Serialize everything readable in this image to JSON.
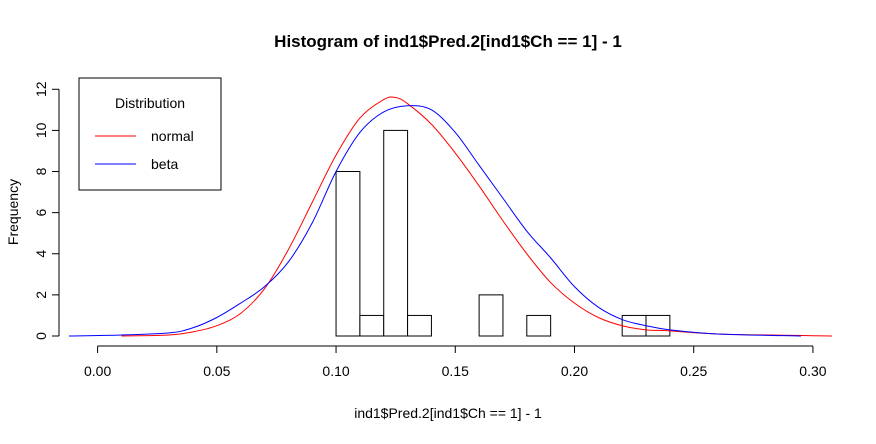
{
  "chart_data": {
    "type": "histogram",
    "title": "Histogram of ind1$Pred.2[ind1$Ch == 1] - 1",
    "xlabel": "ind1$Pred.2[ind1$Ch == 1] - 1",
    "ylabel": "Frequency",
    "xlim": [
      -0.012,
      0.308
    ],
    "ylim": [
      0,
      12.5
    ],
    "x_ticks": [
      0.0,
      0.05,
      0.1,
      0.15,
      0.2,
      0.25,
      0.3
    ],
    "x_tick_labels": [
      "0.00",
      "0.05",
      "0.10",
      "0.15",
      "0.20",
      "0.25",
      "0.30"
    ],
    "y_ticks": [
      0,
      2,
      4,
      6,
      8,
      10,
      12
    ],
    "y_tick_labels": [
      "0",
      "2",
      "4",
      "6",
      "8",
      "10",
      "12"
    ],
    "bins": [
      {
        "x0": 0.1,
        "x1": 0.11,
        "count": 8
      },
      {
        "x0": 0.11,
        "x1": 0.12,
        "count": 1
      },
      {
        "x0": 0.12,
        "x1": 0.13,
        "count": 10
      },
      {
        "x0": 0.13,
        "x1": 0.14,
        "count": 1
      },
      {
        "x0": 0.14,
        "x1": 0.15,
        "count": 0
      },
      {
        "x0": 0.15,
        "x1": 0.16,
        "count": 0
      },
      {
        "x0": 0.16,
        "x1": 0.17,
        "count": 2
      },
      {
        "x0": 0.17,
        "x1": 0.18,
        "count": 0
      },
      {
        "x0": 0.18,
        "x1": 0.19,
        "count": 1
      },
      {
        "x0": 0.19,
        "x1": 0.2,
        "count": 0
      },
      {
        "x0": 0.2,
        "x1": 0.21,
        "count": 0
      },
      {
        "x0": 0.21,
        "x1": 0.22,
        "count": 0
      },
      {
        "x0": 0.22,
        "x1": 0.23,
        "count": 1
      },
      {
        "x0": 0.23,
        "x1": 0.24,
        "count": 1
      }
    ],
    "series": [
      {
        "name": "normal",
        "color": "#ff0000",
        "x": [
          0.01,
          0.03,
          0.04,
          0.05,
          0.06,
          0.07,
          0.08,
          0.09,
          0.1,
          0.11,
          0.12,
          0.125,
          0.13,
          0.14,
          0.15,
          0.16,
          0.17,
          0.18,
          0.19,
          0.2,
          0.21,
          0.22,
          0.23,
          0.24,
          0.26,
          0.308
        ],
        "y": [
          0.0,
          0.05,
          0.2,
          0.5,
          1.1,
          2.3,
          4.2,
          6.5,
          8.8,
          10.6,
          11.5,
          11.6,
          11.3,
          10.3,
          8.9,
          7.3,
          5.6,
          4.0,
          2.6,
          1.6,
          0.9,
          0.5,
          0.3,
          0.25,
          0.1,
          0.0
        ]
      },
      {
        "name": "beta",
        "color": "#0000ff",
        "x": [
          -0.012,
          0.01,
          0.03,
          0.04,
          0.05,
          0.06,
          0.07,
          0.08,
          0.09,
          0.1,
          0.11,
          0.12,
          0.13,
          0.14,
          0.15,
          0.16,
          0.17,
          0.18,
          0.19,
          0.2,
          0.21,
          0.22,
          0.23,
          0.24,
          0.26,
          0.295
        ],
        "y": [
          0.0,
          0.05,
          0.15,
          0.4,
          0.9,
          1.6,
          2.4,
          3.6,
          5.5,
          8.0,
          9.9,
          10.9,
          11.2,
          11.0,
          9.9,
          8.3,
          6.7,
          5.1,
          3.8,
          2.4,
          1.4,
          0.8,
          0.5,
          0.3,
          0.1,
          0.0
        ]
      }
    ],
    "legend": {
      "title": "Distribution",
      "placement": "top-left",
      "entries": [
        {
          "label": "normal",
          "color": "#ff0000"
        },
        {
          "label": "beta",
          "color": "#0000ff"
        }
      ]
    }
  }
}
